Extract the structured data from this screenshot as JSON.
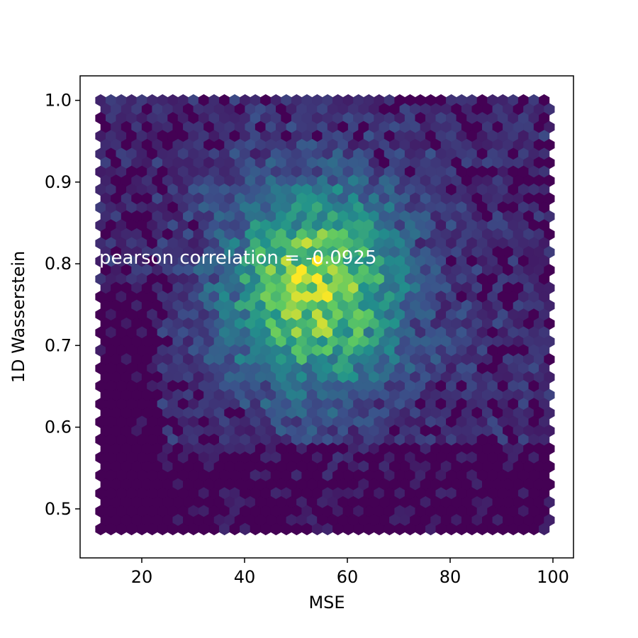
{
  "chart_data": {
    "type": "heatmap",
    "subtype": "hexbin",
    "title": "",
    "xlabel": "MSE",
    "ylabel": "1D Wasserstein",
    "xlim": [
      8,
      104
    ],
    "ylim": [
      0.44,
      1.03
    ],
    "xticks": [
      20,
      40,
      60,
      80,
      100
    ],
    "xtick_labels": [
      "20",
      "40",
      "60",
      "80",
      "100"
    ],
    "yticks": [
      0.5,
      0.6,
      0.7,
      0.8,
      0.9,
      1.0
    ],
    "ytick_labels": [
      "0.5",
      "0.6",
      "0.7",
      "0.8",
      "0.9",
      "1.0"
    ],
    "x_range": [
      12,
      100
    ],
    "y_range": [
      0.47,
      1.0
    ],
    "density_peak": {
      "x": 54,
      "y": 0.77
    },
    "density_spread": {
      "x": 12,
      "y": 0.085
    },
    "colormap": [
      "#440154",
      "#3b528b",
      "#21918c",
      "#5ec962",
      "#fde725"
    ],
    "annotation": "pearson correlation = -0.0925",
    "grid": false,
    "legend": "none"
  }
}
